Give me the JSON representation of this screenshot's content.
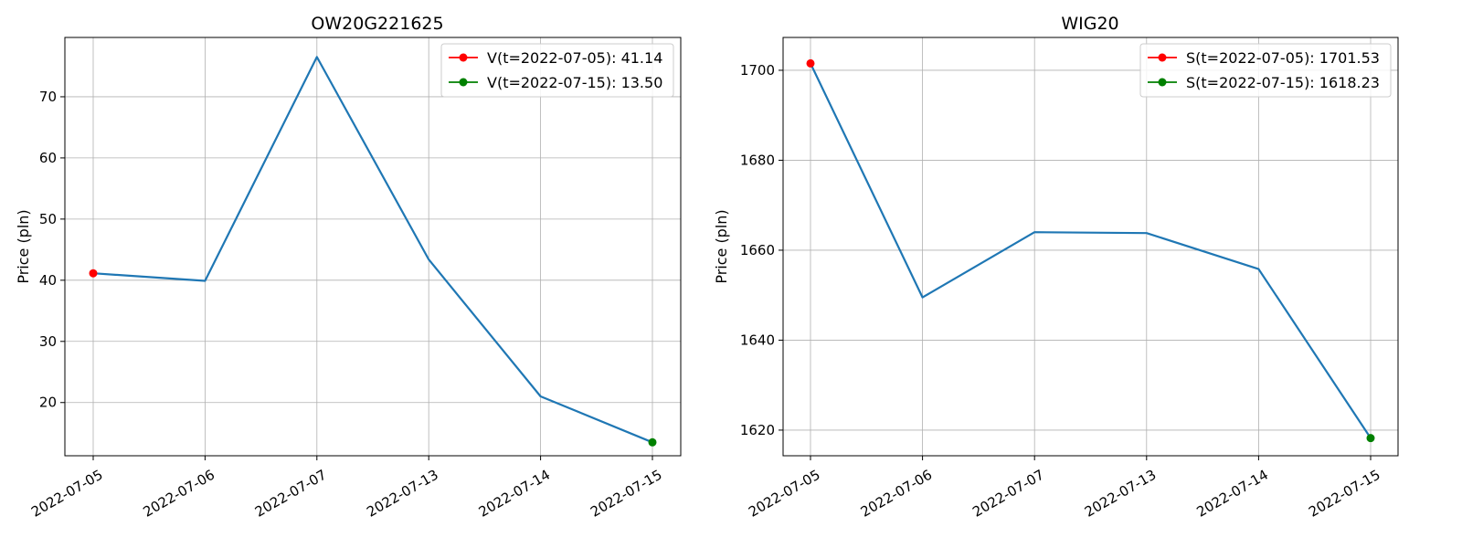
{
  "colors": {
    "line": "#1f77b4",
    "start_marker": "#ff0000",
    "end_marker": "#008000",
    "grid": "#b0b0b0"
  },
  "chart_data": [
    {
      "type": "line",
      "title": "OW20G221625",
      "xlabel": "",
      "ylabel": "Price (pln)",
      "categories": [
        "2022-07-05",
        "2022-07-06",
        "2022-07-07",
        "2022-07-13",
        "2022-07-14",
        "2022-07-15"
      ],
      "series": [
        {
          "values": [
            41.14,
            39.9,
            76.5,
            43.4,
            21.0,
            13.5
          ]
        }
      ],
      "yticks": [
        20,
        30,
        40,
        50,
        60,
        70
      ],
      "ylim": [
        11.3,
        79.7
      ],
      "grid": true,
      "legend_position": "top-right",
      "legend": [
        {
          "label": "V(t=2022-07-05): 41.14",
          "color": "#ff0000",
          "x": "2022-07-05",
          "y": 41.14
        },
        {
          "label": "V(t=2022-07-15): 13.50",
          "color": "#008000",
          "x": "2022-07-15",
          "y": 13.5
        }
      ]
    },
    {
      "type": "line",
      "title": "WIG20",
      "xlabel": "",
      "ylabel": "Price (pln)",
      "categories": [
        "2022-07-05",
        "2022-07-06",
        "2022-07-07",
        "2022-07-13",
        "2022-07-14",
        "2022-07-15"
      ],
      "series": [
        {
          "values": [
            1701.53,
            1649.5,
            1664.0,
            1663.8,
            1655.8,
            1618.23
          ]
        }
      ],
      "yticks": [
        1620,
        1640,
        1660,
        1680,
        1700
      ],
      "ylim": [
        1614.3,
        1707.3
      ],
      "grid": true,
      "legend_position": "top-right",
      "legend": [
        {
          "label": "S(t=2022-07-05): 1701.53",
          "color": "#ff0000",
          "x": "2022-07-05",
          "y": 1701.53
        },
        {
          "label": "S(t=2022-07-15): 1618.23",
          "color": "#008000",
          "x": "2022-07-15",
          "y": 1618.23
        }
      ]
    }
  ]
}
